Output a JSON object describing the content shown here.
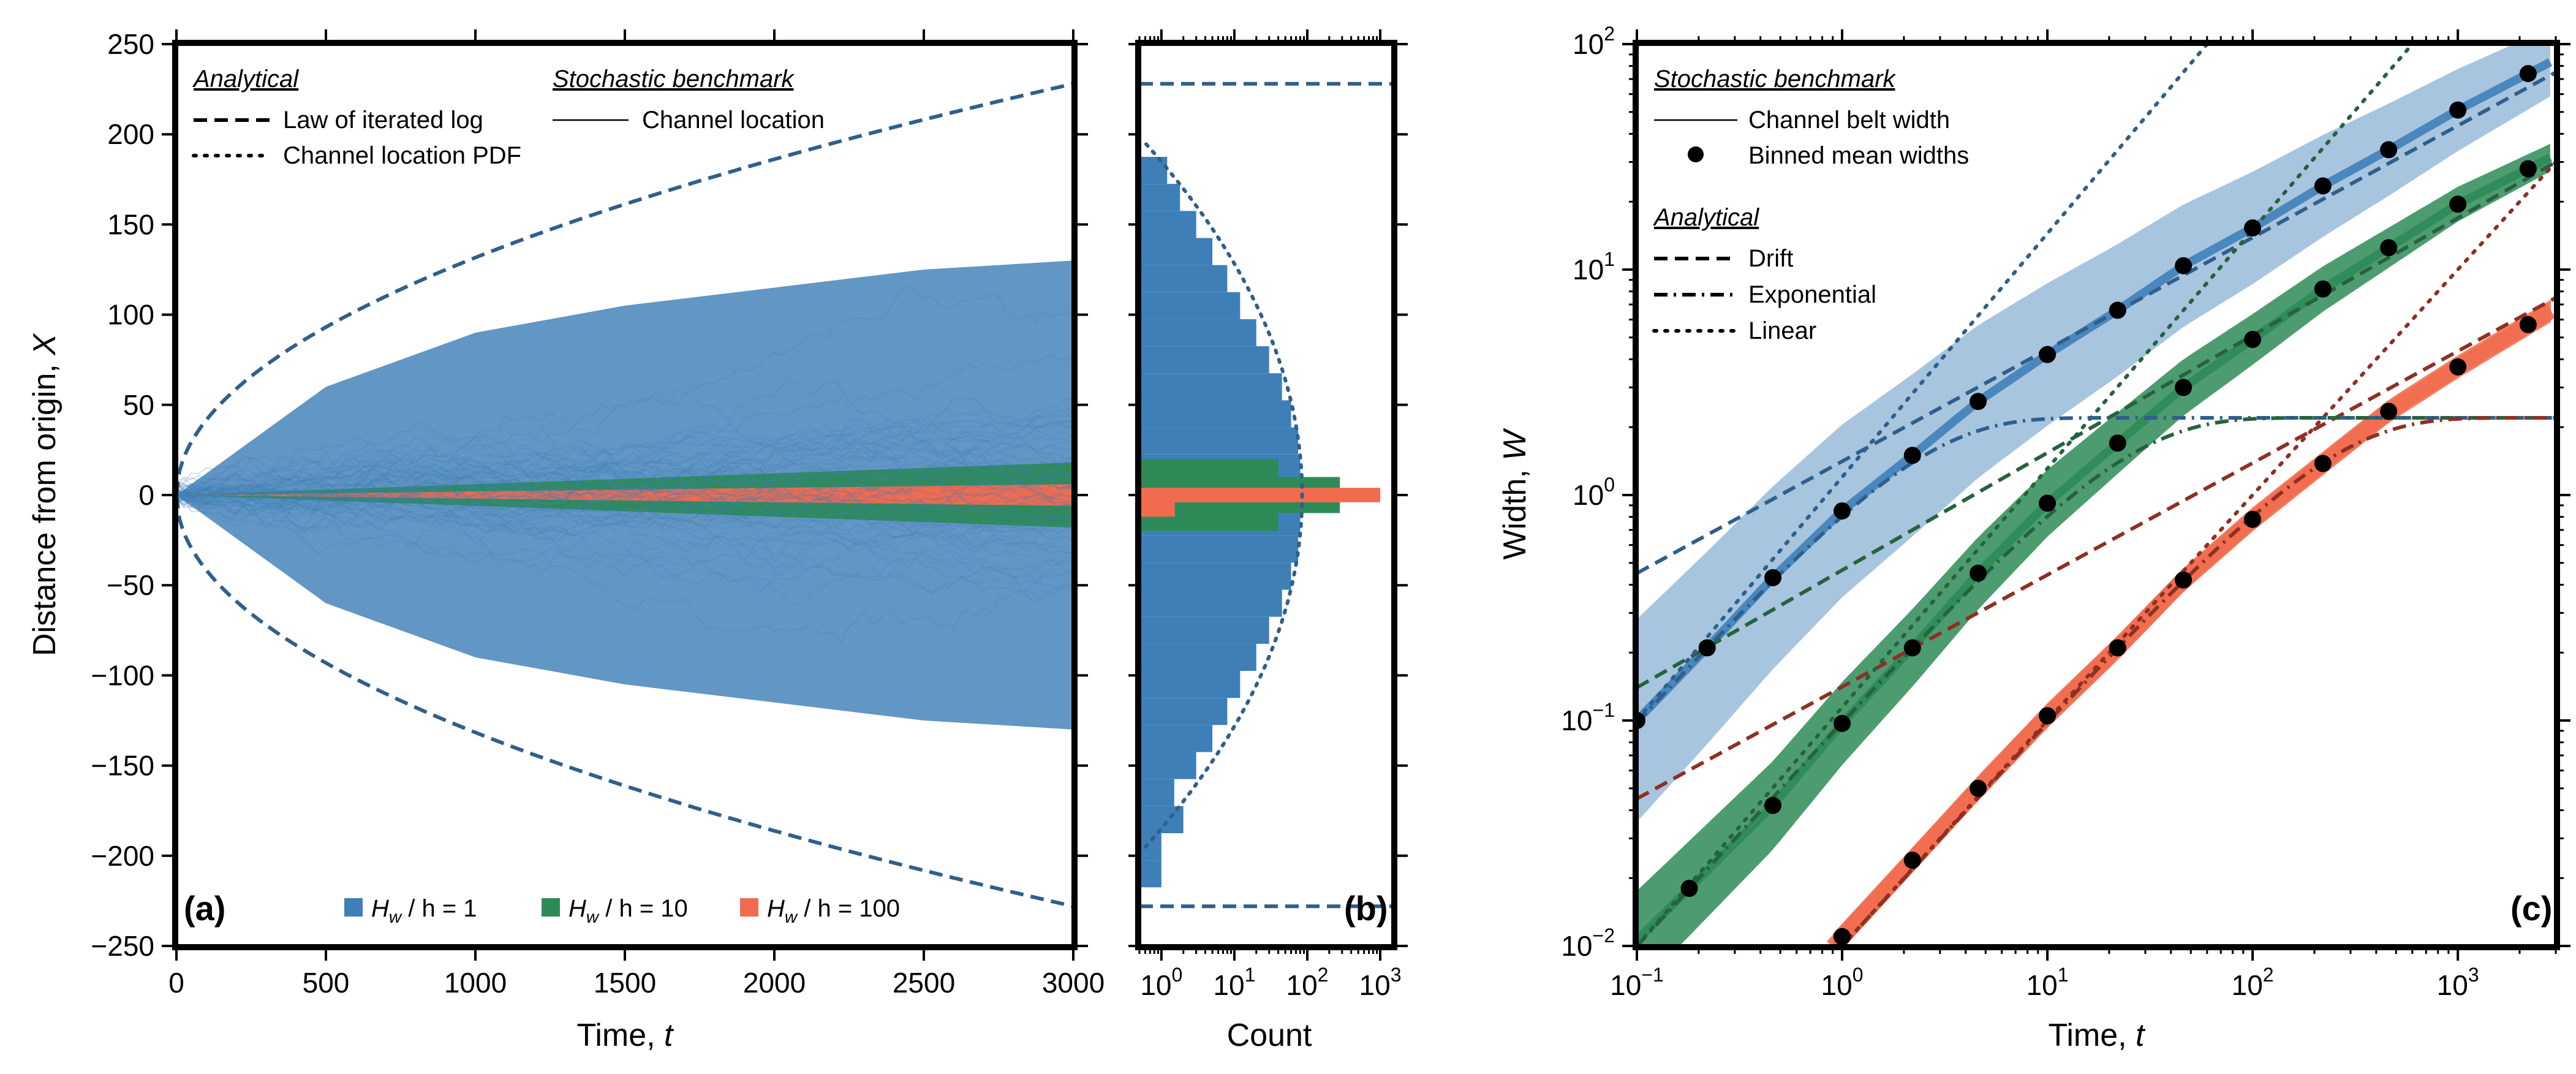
{
  "colors": {
    "blue": "#3f7fb8",
    "blue_dark": "#2f5f8c",
    "green": "#2e8b57",
    "green_dark": "#27623f",
    "red": "#f26b4f",
    "red_dark": "#8e3024",
    "frame": "#000000"
  },
  "chart_data": [
    {
      "panel": "(a)",
      "type": "line",
      "xlabel": "Time, t",
      "ylabel": "Distance from origin, X",
      "xlim": [
        0,
        3000
      ],
      "ylim": [
        -250,
        250
      ],
      "xticks": [
        "0",
        "500",
        "1000",
        "1500",
        "2000",
        "2500",
        "3000"
      ],
      "yticks": [
        "250",
        "200",
        "150",
        "100",
        "50",
        "0",
        "−50",
        "−100",
        "−150",
        "−200",
        "−250"
      ],
      "legend": {
        "analytical_title": "Analytical",
        "analytical_items": [
          "Law of iterated log",
          "Channel location PDF"
        ],
        "stochastic_title": "Stochastic benchmark",
        "stochastic_items": [
          "Channel location"
        ]
      },
      "bottom_legend": [
        {
          "label": "Hw / h = 1",
          "main": "H",
          "sub": "w",
          "rest": " / h = 1"
        },
        {
          "label": "Hw / h = 10",
          "main": "H",
          "sub": "w",
          "rest": " / h = 10"
        },
        {
          "label": "Hw / h = 100",
          "main": "H",
          "sub": "w",
          "rest": " / h = 100"
        }
      ],
      "series": [
        {
          "name": "Law of iterated log",
          "t": [
            0,
            3000
          ],
          "amplitude_at_tmax": 228
        },
        {
          "name": "Hw / h = 1 envelope",
          "t": [
            0,
            500,
            1000,
            1500,
            2000,
            2500,
            3000
          ],
          "upper": [
            0,
            60,
            90,
            105,
            115,
            125,
            130
          ],
          "lower": [
            0,
            -60,
            -90,
            -105,
            -115,
            -125,
            -130
          ]
        },
        {
          "name": "Hw / h = 10 envelope",
          "t": [
            0,
            3000
          ],
          "upper": [
            0,
            18
          ],
          "lower": [
            0,
            -18
          ]
        },
        {
          "name": "Hw / h = 100 envelope",
          "t": [
            0,
            3000
          ],
          "upper": [
            0,
            6
          ],
          "lower": [
            0,
            -6
          ]
        }
      ]
    },
    {
      "panel": "(b)",
      "type": "bar",
      "xlabel": "Count",
      "xscale": "log",
      "xlim": [
        0.5,
        1500
      ],
      "xticks": [
        "10^0",
        "10^1",
        "10^2",
        "10^3"
      ],
      "ylim": [
        -250,
        250
      ],
      "bins_hw1": [
        {
          "y": 180,
          "count": 1.2
        },
        {
          "y": 165,
          "count": 1.8
        },
        {
          "y": 150,
          "count": 3
        },
        {
          "y": 135,
          "count": 5
        },
        {
          "y": 120,
          "count": 8
        },
        {
          "y": 105,
          "count": 12
        },
        {
          "y": 90,
          "count": 20
        },
        {
          "y": 75,
          "count": 30
        },
        {
          "y": 60,
          "count": 45
        },
        {
          "y": 45,
          "count": 60
        },
        {
          "y": 30,
          "count": 75
        },
        {
          "y": 15,
          "count": 80
        },
        {
          "y": 0,
          "count": 85
        },
        {
          "y": -15,
          "count": 80
        },
        {
          "y": -30,
          "count": 75
        },
        {
          "y": -45,
          "count": 60
        },
        {
          "y": -60,
          "count": 45
        },
        {
          "y": -75,
          "count": 30
        },
        {
          "y": -90,
          "count": 20
        },
        {
          "y": -105,
          "count": 12
        },
        {
          "y": -120,
          "count": 8
        },
        {
          "y": -135,
          "count": 5
        },
        {
          "y": -150,
          "count": 3
        },
        {
          "y": -165,
          "count": 1.5
        },
        {
          "y": -180,
          "count": 2
        },
        {
          "y": -195,
          "count": 1
        },
        {
          "y": -210,
          "count": 1
        }
      ],
      "bins_hw10": [
        {
          "y": 15,
          "count": 40
        },
        {
          "y": 5,
          "count": 280
        },
        {
          "y": -5,
          "count": 280
        },
        {
          "y": -15,
          "count": 40
        }
      ],
      "bins_hw100": [
        {
          "y": 0,
          "count": 1000
        },
        {
          "y": -8,
          "count": 1
        }
      ],
      "law_iterated_log_y": 228
    },
    {
      "panel": "(c)",
      "type": "line",
      "xlabel": "Time, t",
      "ylabel": "Width, W",
      "xscale": "log",
      "yscale": "log",
      "xlim": [
        0.1,
        3000
      ],
      "ylim": [
        0.01,
        100
      ],
      "xticks": [
        "10^-1",
        "10^0",
        "10^1",
        "10^2",
        "10^3"
      ],
      "yticks": [
        "10^2",
        "10^1",
        "10^0",
        "10^-1",
        "10^-2"
      ],
      "legend": {
        "stochastic_title": "Stochastic benchmark",
        "stochastic_items": [
          "Channel belt width",
          "Binned mean widths"
        ],
        "analytical_title": "Analytical",
        "analytical_items": [
          "Drift",
          "Exponential",
          "Linear"
        ]
      },
      "binned_means": [
        {
          "name": "Hw / h = 1",
          "t": [
            0.1,
            0.22,
            0.46,
            1.0,
            2.2,
            4.6,
            10,
            22,
            46,
            100,
            220,
            460,
            1000,
            2200
          ],
          "w": [
            0.1,
            0.21,
            0.43,
            0.85,
            1.5,
            2.6,
            4.2,
            6.6,
            10.4,
            15.3,
            23.5,
            34,
            51,
            74
          ]
        },
        {
          "name": "Hw / h = 10",
          "t": [
            0.18,
            0.46,
            1.0,
            2.2,
            4.6,
            10,
            22,
            46,
            100,
            220,
            460,
            1000,
            2200
          ],
          "w": [
            0.018,
            0.042,
            0.097,
            0.21,
            0.45,
            0.92,
            1.7,
            3.0,
            4.9,
            8.2,
            12.5,
            19.5,
            28
          ]
        },
        {
          "name": "Hw / h = 100",
          "t": [
            1.0,
            2.2,
            4.6,
            10,
            22,
            46,
            100,
            220,
            460,
            1000,
            2200
          ],
          "w": [
            0.011,
            0.024,
            0.05,
            0.105,
            0.21,
            0.42,
            0.78,
            1.38,
            2.35,
            3.7,
            5.7
          ]
        }
      ],
      "analytical": [
        {
          "name": "Drift Hw/h=1",
          "t": [
            0.1,
            3000
          ],
          "w": [
            0.45,
            75
          ]
        },
        {
          "name": "Drift Hw/h=10",
          "t": [
            0.1,
            3000
          ],
          "w": [
            0.14,
            30
          ]
        },
        {
          "name": "Drift Hw/h=100",
          "t": [
            0.1,
            3000
          ],
          "w": [
            0.045,
            7.5
          ]
        },
        {
          "name": "Exponential plateau",
          "w_max": 2.2
        },
        {
          "name": "Linear Hw/h=1",
          "t": [
            0.1,
            60
          ],
          "w": [
            0.1,
            100
          ]
        },
        {
          "name": "Linear Hw/h=10",
          "t": [
            0.1,
            600
          ],
          "w": [
            0.01,
            100
          ]
        },
        {
          "name": "Linear Hw/h=100",
          "t": [
            1,
            3000
          ],
          "w": [
            0.01,
            30
          ]
        }
      ]
    }
  ]
}
